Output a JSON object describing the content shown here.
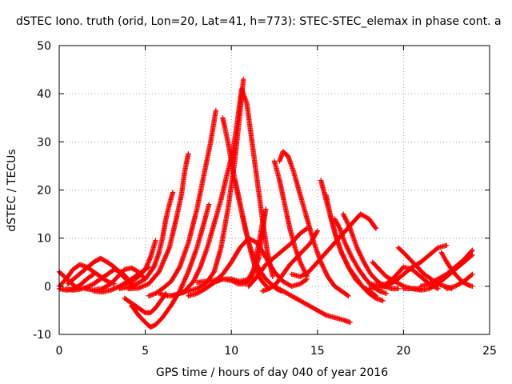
{
  "chart_data": {
    "type": "scatter",
    "title": "dSTEC Iono. truth (orid, Lon=20, Lat=41, h=773): STEC-STEC_elemax in phase cont. a",
    "xlabel": "GPS time / hours of day 040 of year 2016",
    "ylabel": "dSTEC  / TECUs",
    "xlim": [
      0,
      25
    ],
    "ylim": [
      -10,
      50
    ],
    "xticks": [
      0,
      5,
      10,
      15,
      20,
      25
    ],
    "yticks": [
      -10,
      0,
      10,
      20,
      30,
      40,
      50
    ],
    "grid": true,
    "marker": "+",
    "color": "#ff0000",
    "series": [
      {
        "x": [
          0.0,
          0.3,
          0.6,
          0.9,
          1.2
        ],
        "y": [
          3.0,
          2.0,
          1.0,
          0.0,
          -0.5
        ]
      },
      {
        "x": [
          0.0,
          0.4,
          0.8,
          1.2,
          1.6,
          2.0
        ],
        "y": [
          -0.5,
          -0.8,
          -0.6,
          0.2,
          1.5,
          2.5
        ]
      },
      {
        "x": [
          0.0,
          0.4,
          0.8,
          1.2,
          1.6,
          2.0,
          2.4,
          2.8,
          3.2
        ],
        "y": [
          0.0,
          1.5,
          3.5,
          4.5,
          4.0,
          3.0,
          2.0,
          1.0,
          0.5
        ]
      },
      {
        "x": [
          0.4,
          0.8,
          1.2,
          1.6,
          2.0,
          2.4,
          2.8,
          3.2,
          3.6,
          4.0
        ],
        "y": [
          -0.6,
          -0.8,
          -0.6,
          -0.2,
          0.5,
          1.5,
          2.5,
          3.5,
          3.0,
          1.5
        ]
      },
      {
        "x": [
          0.5,
          1.0,
          1.5,
          2.0,
          2.4,
          2.8,
          3.2,
          3.6,
          4.0,
          4.4
        ],
        "y": [
          0.5,
          2.0,
          3.5,
          5.0,
          5.8,
          5.0,
          4.0,
          2.5,
          1.0,
          0.0
        ]
      },
      {
        "x": [
          1.5,
          2.0,
          2.5,
          3.0,
          3.4,
          3.8,
          4.2,
          4.6,
          5.0
        ],
        "y": [
          -0.5,
          -0.8,
          -0.5,
          0.5,
          2.0,
          3.5,
          3.8,
          3.0,
          1.5
        ]
      },
      {
        "x": [
          2.0,
          2.5,
          3.0,
          3.5,
          4.0,
          4.4,
          4.8,
          5.2
        ],
        "y": [
          -1.0,
          -1.2,
          -0.8,
          0.0,
          1.0,
          2.0,
          3.0,
          4.0
        ]
      },
      {
        "x": [
          3.5,
          4.0,
          4.5,
          5.0,
          5.5,
          5.8,
          6.0,
          6.2,
          6.4,
          6.6
        ],
        "y": [
          -0.5,
          -0.2,
          0.5,
          1.5,
          4.0,
          7.0,
          10.0,
          14.0,
          17.0,
          19.5
        ]
      },
      {
        "x": [
          3.8,
          4.2,
          4.6,
          5.0,
          5.3,
          5.6
        ],
        "y": [
          0.5,
          1.0,
          2.0,
          3.5,
          6.0,
          9.5
        ]
      },
      {
        "x": [
          4.0,
          4.6,
          5.2,
          5.8,
          6.4,
          6.8,
          7.1,
          7.3,
          7.5
        ],
        "y": [
          -0.5,
          -0.4,
          0.5,
          3.0,
          8.0,
          14.0,
          19.0,
          24.0,
          27.5
        ]
      },
      {
        "x": [
          3.8,
          4.2,
          4.6,
          5.0,
          5.3,
          5.6,
          5.9,
          6.2
        ],
        "y": [
          -2.5,
          -3.5,
          -4.5,
          -5.5,
          -5.5,
          -4.5,
          -3.0,
          -1.5
        ]
      },
      {
        "x": [
          4.2,
          4.6,
          5.0,
          5.3,
          5.6,
          6.0,
          6.5,
          7.0,
          7.5,
          8.0,
          8.4,
          8.7
        ],
        "y": [
          -4.0,
          -6.0,
          -7.5,
          -8.5,
          -8.0,
          -6.5,
          -4.0,
          -1.0,
          3.0,
          8.0,
          13.0,
          17.0
        ]
      },
      {
        "x": [
          5.2,
          5.6,
          6.0,
          6.5,
          7.0,
          7.5,
          8.0,
          8.4,
          8.8,
          9.1
        ],
        "y": [
          -2.0,
          -1.5,
          -0.5,
          1.0,
          4.0,
          9.0,
          16.0,
          23.0,
          30.0,
          36.5
        ]
      },
      {
        "x": [
          5.8,
          6.3,
          6.8,
          7.3,
          7.8,
          8.2,
          8.6,
          9.0,
          9.4,
          9.8,
          10.1
        ],
        "y": [
          -1.5,
          -2.0,
          -1.8,
          -1.0,
          1.0,
          4.0,
          8.0,
          13.0,
          18.0,
          24.0,
          28.0
        ]
      },
      {
        "x": [
          6.5,
          7.0,
          7.5,
          8.0,
          8.5,
          9.0,
          9.4,
          9.8,
          10.2,
          10.5,
          10.7
        ],
        "y": [
          -2.0,
          -1.5,
          -1.0,
          -0.5,
          0.5,
          3.0,
          8.0,
          16.0,
          26.0,
          36.0,
          43.0
        ]
      },
      {
        "x": [
          9.5,
          9.8,
          10.1,
          10.4,
          10.7,
          11.0,
          11.3,
          11.6,
          11.9,
          12.2
        ],
        "y": [
          35.0,
          30.0,
          24.0,
          19.0,
          14.0,
          9.0,
          5.0,
          2.0,
          0.5,
          -0.5
        ]
      },
      {
        "x": [
          10.0,
          10.3,
          10.6,
          10.9,
          11.2,
          11.5,
          11.8,
          12.1,
          12.4
        ],
        "y": [
          26.0,
          33.0,
          41.0,
          38.0,
          30.0,
          22.0,
          14.0,
          7.0,
          2.0
        ]
      },
      {
        "x": [
          10.2,
          10.5,
          10.8,
          11.1,
          11.4,
          11.7,
          12.0,
          12.3,
          12.6,
          12.9
        ],
        "y": [
          22.0,
          17.0,
          12.0,
          8.0,
          5.0,
          3.0,
          1.5,
          0.5,
          -0.5,
          -1.0
        ]
      },
      {
        "x": [
          7.5,
          8.0,
          8.5,
          9.0,
          9.5,
          10.0,
          10.4,
          10.8,
          11.2,
          11.6,
          12.0
        ],
        "y": [
          -2.0,
          -1.5,
          -0.5,
          0.8,
          1.5,
          1.2,
          0.5,
          0.5,
          2.0,
          6.0,
          16.0
        ]
      },
      {
        "x": [
          8.0,
          8.5,
          9.0,
          9.5,
          10.0,
          10.5,
          11.0,
          11.3,
          11.6,
          11.9
        ],
        "y": [
          0.8,
          1.0,
          1.2,
          1.5,
          1.5,
          1.0,
          1.5,
          3.5,
          9.0,
          15.0
        ]
      },
      {
        "x": [
          9.0,
          9.5,
          10.0,
          10.5,
          11.0,
          11.5,
          12.0,
          12.5,
          13.0,
          13.5,
          14.0,
          14.4
        ],
        "y": [
          1.0,
          2.5,
          5.0,
          8.0,
          10.0,
          9.0,
          6.0,
          3.0,
          1.0,
          0.0,
          0.5,
          1.5
        ]
      },
      {
        "x": [
          11.0,
          11.5,
          12.0,
          12.5,
          13.0,
          13.5,
          14.0,
          14.4
        ],
        "y": [
          0.0,
          2.0,
          4.5,
          6.0,
          7.5,
          9.0,
          11.0,
          12.0
        ]
      },
      {
        "x": [
          11.8,
          12.2,
          12.6,
          13.0,
          13.4,
          13.8,
          14.2,
          14.6,
          15.0
        ],
        "y": [
          -1.0,
          -0.5,
          0.5,
          2.5,
          4.5,
          6.0,
          7.5,
          9.0,
          11.5
        ]
      },
      {
        "x": [
          12.5,
          13.0,
          13.5,
          14.0,
          14.5,
          15.0,
          15.5,
          16.0,
          16.5,
          16.9
        ],
        "y": [
          0.0,
          -1.0,
          -2.0,
          -3.0,
          -4.0,
          -5.0,
          -6.0,
          -6.5,
          -7.0,
          -7.5
        ]
      },
      {
        "x": [
          12.8,
          13.0,
          13.3,
          13.6,
          14.0,
          14.4,
          14.8,
          15.2,
          15.6,
          16.0,
          16.4,
          16.8
        ],
        "y": [
          26.0,
          28.0,
          27.0,
          24.0,
          19.0,
          14.0,
          9.0,
          5.0,
          2.0,
          0.0,
          -1.0,
          -2.0
        ]
      },
      {
        "x": [
          12.5,
          12.8,
          13.1,
          13.4,
          13.7,
          14.0,
          14.4
        ],
        "y": [
          26.0,
          22.0,
          17.0,
          12.0,
          8.0,
          5.0,
          2.0
        ]
      },
      {
        "x": [
          13.5,
          14.0,
          14.5,
          15.0,
          15.5,
          16.0,
          16.5,
          17.0,
          17.5,
          18.0,
          18.4
        ],
        "y": [
          2.5,
          2.0,
          3.0,
          5.0,
          7.0,
          9.0,
          11.0,
          13.0,
          15.0,
          14.0,
          12.0
        ]
      },
      {
        "x": [
          15.2,
          15.5,
          15.8,
          16.1,
          16.4,
          16.8,
          17.2,
          17.6,
          18.0,
          18.4
        ],
        "y": [
          22.0,
          18.0,
          14.0,
          10.0,
          7.0,
          4.0,
          1.5,
          0.0,
          -1.0,
          -2.0
        ]
      },
      {
        "x": [
          15.5,
          15.8,
          16.1,
          16.4,
          16.8,
          17.2,
          17.6,
          18.0,
          18.4,
          18.8
        ],
        "y": [
          19.0,
          14.0,
          10.0,
          7.0,
          4.0,
          2.0,
          0.0,
          -1.5,
          -2.5,
          -3.0
        ]
      },
      {
        "x": [
          16.0,
          16.3,
          16.6,
          17.0,
          17.4,
          17.8,
          18.2,
          18.6,
          19.0
        ],
        "y": [
          14.0,
          12.0,
          9.0,
          6.0,
          3.5,
          1.5,
          0.0,
          -1.0,
          -1.5
        ]
      },
      {
        "x": [
          16.5,
          16.9,
          17.3,
          17.7,
          18.1,
          18.5,
          18.9,
          19.3,
          19.7
        ],
        "y": [
          15.0,
          12.0,
          8.0,
          5.0,
          2.5,
          1.0,
          0.0,
          -0.5,
          -0.5
        ]
      },
      {
        "x": [
          18.0,
          18.5,
          19.0,
          19.5,
          20.0,
          20.5,
          21.0,
          21.5,
          22.0
        ],
        "y": [
          0.5,
          0.2,
          0.5,
          2.0,
          4.0,
          3.5,
          2.0,
          0.5,
          -0.5
        ]
      },
      {
        "x": [
          18.2,
          18.6,
          19.0,
          19.5,
          20.0,
          20.5,
          21.0
        ],
        "y": [
          5.0,
          3.5,
          2.0,
          1.0,
          0.0,
          -0.5,
          -0.5
        ]
      },
      {
        "x": [
          18.0,
          18.5,
          19.0,
          19.5,
          20.0,
          20.5,
          21.0,
          21.5,
          22.0,
          22.5
        ],
        "y": [
          -0.5,
          -0.3,
          0.0,
          1.0,
          2.5,
          4.0,
          5.0,
          6.5,
          8.0,
          8.5
        ]
      },
      {
        "x": [
          19.7,
          20.0,
          20.4,
          20.8,
          21.2,
          21.6,
          22.0,
          22.4,
          22.8
        ],
        "y": [
          8.0,
          7.0,
          5.5,
          4.0,
          2.5,
          1.5,
          0.5,
          0.0,
          -0.5
        ]
      },
      {
        "x": [
          20.0,
          20.5,
          21.0,
          21.5,
          22.0,
          22.5,
          23.0,
          23.5,
          24.0
        ],
        "y": [
          -0.5,
          -0.5,
          -0.8,
          -0.5,
          0.5,
          2.0,
          3.5,
          5.0,
          6.5
        ]
      },
      {
        "x": [
          21.0,
          21.5,
          22.0,
          22.5,
          23.0,
          23.5,
          24.0
        ],
        "y": [
          0.0,
          0.5,
          1.5,
          2.5,
          4.0,
          5.5,
          7.5
        ]
      },
      {
        "x": [
          22.2,
          22.6,
          23.0,
          23.4,
          23.8,
          24.0
        ],
        "y": [
          7.0,
          4.5,
          2.5,
          1.0,
          0.2,
          0.0
        ]
      },
      {
        "x": [
          22.5,
          23.0,
          23.5,
          24.0
        ],
        "y": [
          -0.5,
          0.0,
          1.0,
          2.5
        ]
      }
    ]
  }
}
